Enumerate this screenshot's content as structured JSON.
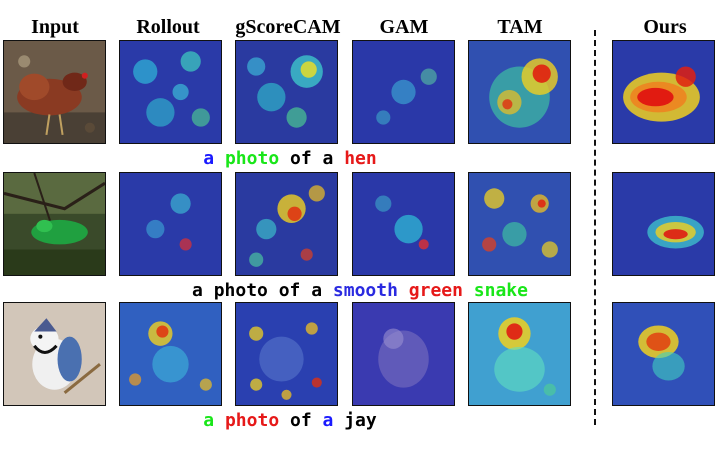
{
  "headers": {
    "input": "Input",
    "rollout": "Rollout",
    "gscorecam": "gScoreCAM",
    "gam": "GAM",
    "tam": "TAM",
    "ours": "Ours"
  },
  "rows": [
    {
      "subject": "hen",
      "caption": [
        {
          "text": "a ",
          "color": "#1a1aff"
        },
        {
          "text": "photo ",
          "color": "#19e619"
        },
        {
          "text": "of a ",
          "color": "#000000"
        },
        {
          "text": "hen",
          "color": "#e61919"
        }
      ]
    },
    {
      "subject": "snake",
      "caption": [
        {
          "text": "a photo of a ",
          "color": "#000000"
        },
        {
          "text": "smooth ",
          "color": "#2a2ae0"
        },
        {
          "text": "green ",
          "color": "#e61919"
        },
        {
          "text": "snake",
          "color": "#19e619"
        }
      ]
    },
    {
      "subject": "jay",
      "caption": [
        {
          "text": "a ",
          "color": "#19e619"
        },
        {
          "text": "photo ",
          "color": "#e61919"
        },
        {
          "text": "of ",
          "color": "#000000"
        },
        {
          "text": "a ",
          "color": "#1a1aff"
        },
        {
          "text": "jay",
          "color": "#000000"
        }
      ]
    }
  ],
  "colors": {
    "heat_low": "#1c2fa8",
    "heat_mid": "#2fd0e0",
    "heat_warm": "#f0e020",
    "heat_hot": "#e01010"
  }
}
